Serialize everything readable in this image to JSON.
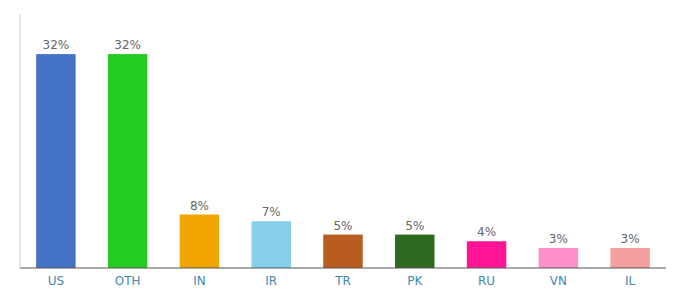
{
  "chart_data": {
    "type": "bar",
    "categories": [
      "US",
      "OTH",
      "IN",
      "IR",
      "TR",
      "PK",
      "RU",
      "VN",
      "IL"
    ],
    "values": [
      32,
      32,
      8,
      7,
      5,
      5,
      4,
      3,
      3
    ],
    "value_labels": [
      "32%",
      "32%",
      "8%",
      "7%",
      "5%",
      "5%",
      "4%",
      "3%",
      "3%"
    ],
    "colors": [
      "#4472c4",
      "#22cc22",
      "#f0a500",
      "#87ceeb",
      "#b85c20",
      "#2d6a1f",
      "#ff1493",
      "#ff91c8",
      "#f4a0a0"
    ],
    "ylim": [
      0,
      38
    ],
    "data_labels": true,
    "tick_labels": "x"
  }
}
